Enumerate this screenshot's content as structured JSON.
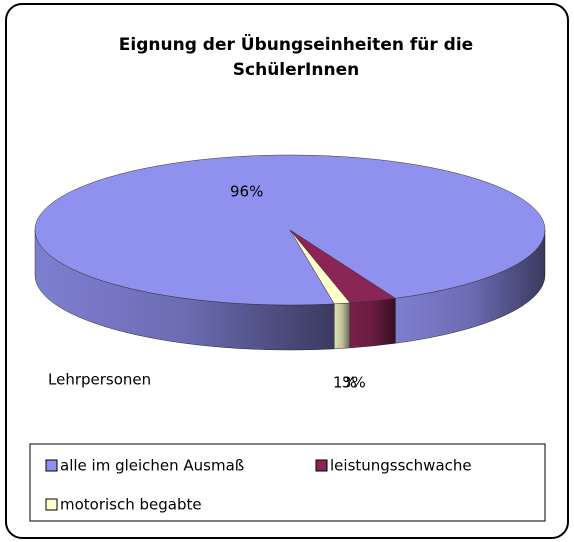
{
  "chart_data": {
    "type": "pie3d",
    "title": [
      "Eignung der Übungseinheiten für die",
      "SchülerInnen"
    ],
    "annotation": "Lehrpersonen",
    "categories": [
      "alle im gleichen Ausmaß",
      "leistungsschwache",
      "motorisch begabte"
    ],
    "values": [
      96,
      3,
      1
    ],
    "value_labels": [
      "96%",
      "3%",
      "1%"
    ],
    "colors": [
      "#9090ee",
      "#8b2555",
      "#ffffcc"
    ],
    "legend": "bottom"
  }
}
